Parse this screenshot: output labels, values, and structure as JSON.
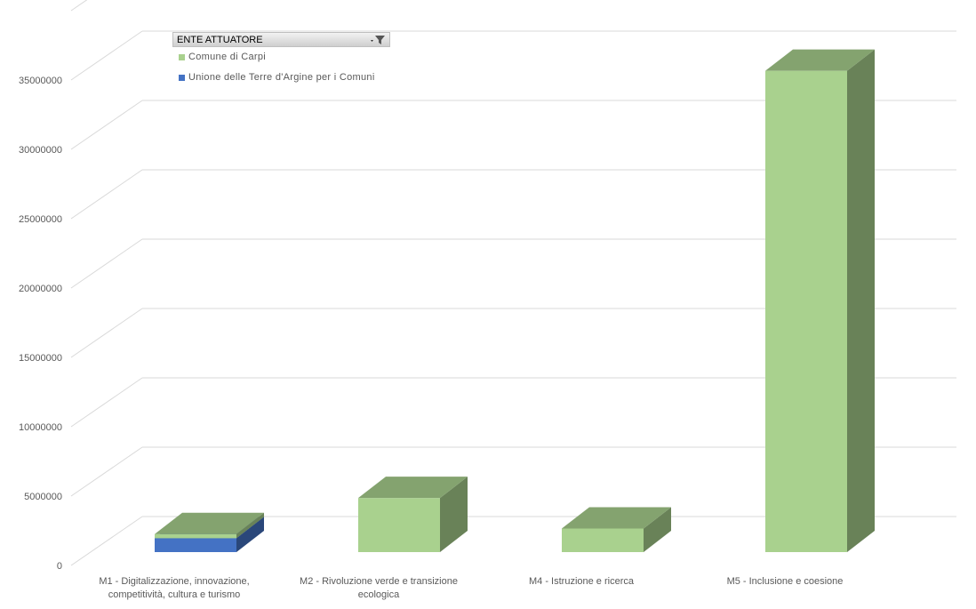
{
  "chart_data": {
    "type": "bar",
    "stacked": true,
    "three_d": true,
    "categories": [
      [
        "M1 - Digitalizzazione, innovazione,",
        "competitività, cultura e turismo"
      ],
      [
        "M2 - Rivoluzione verde e transizione",
        "ecologica"
      ],
      [
        "M4 - Istruzione e ricerca"
      ],
      [
        "M5 - Inclusione e coesione"
      ]
    ],
    "series": [
      {
        "name": "Unione delle Terre d'Argine per i Comuni",
        "color": "#4472c4",
        "values": [
          1000000,
          0,
          0,
          0
        ]
      },
      {
        "name": "Comune di Carpi",
        "color": "#a9d18e",
        "values": [
          300000,
          3900000,
          1700000,
          34700000
        ]
      }
    ],
    "yticks": [
      "0",
      "5000000",
      "10000000",
      "15000000",
      "20000000",
      "25000000",
      "30000000",
      "35000000"
    ],
    "ylim": [
      0,
      35000000
    ],
    "grid": true,
    "legend": {
      "header": "ENTE ATTUATORE",
      "placement": "top-left",
      "filter_icon": "filter-icon",
      "items": [
        "Comune di Carpi",
        "Unione delle Terre d'Argine per i Comuni"
      ]
    }
  }
}
